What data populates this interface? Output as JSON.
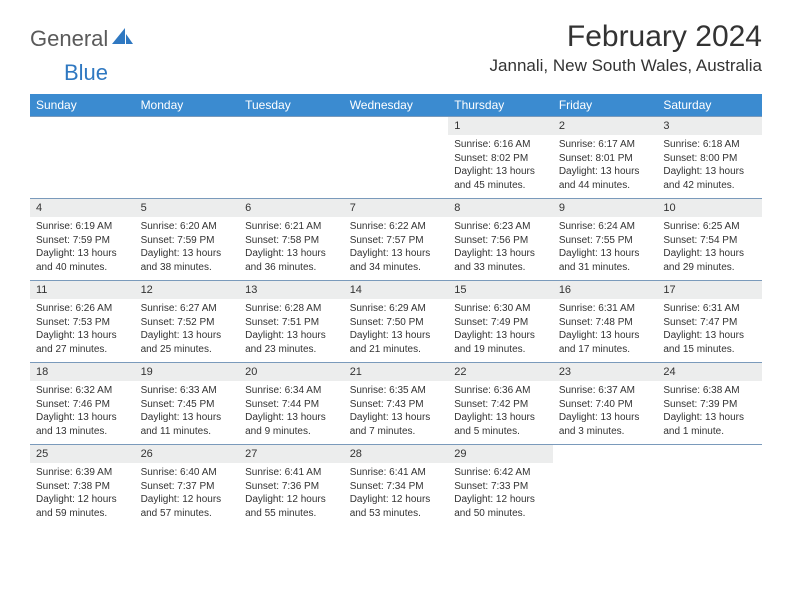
{
  "branding": {
    "text_general": "General",
    "text_blue": "Blue",
    "logo_color": "#2f78c1",
    "text_color_gray": "#5a5a5a"
  },
  "header": {
    "month_title": "February 2024",
    "location": "Jannali, New South Wales, Australia"
  },
  "styling": {
    "header_bg": "#3b8bd0",
    "header_text": "#ffffff",
    "daynum_bg": "#eceded",
    "row_divider": "#7a9abb",
    "body_text": "#333333",
    "page_bg": "#ffffff",
    "title_fontsize": 30,
    "location_fontsize": 17,
    "dayheader_fontsize": 12,
    "daynum_fontsize": 11,
    "cell_fontsize": 10
  },
  "day_headers": [
    "Sunday",
    "Monday",
    "Tuesday",
    "Wednesday",
    "Thursday",
    "Friday",
    "Saturday"
  ],
  "weeks": [
    {
      "nums": [
        "",
        "",
        "",
        "",
        "1",
        "2",
        "3"
      ],
      "cells": [
        null,
        null,
        null,
        null,
        {
          "sunrise": "Sunrise: 6:16 AM",
          "sunset": "Sunset: 8:02 PM",
          "daylight": "Daylight: 13 hours and 45 minutes."
        },
        {
          "sunrise": "Sunrise: 6:17 AM",
          "sunset": "Sunset: 8:01 PM",
          "daylight": "Daylight: 13 hours and 44 minutes."
        },
        {
          "sunrise": "Sunrise: 6:18 AM",
          "sunset": "Sunset: 8:00 PM",
          "daylight": "Daylight: 13 hours and 42 minutes."
        }
      ]
    },
    {
      "nums": [
        "4",
        "5",
        "6",
        "7",
        "8",
        "9",
        "10"
      ],
      "cells": [
        {
          "sunrise": "Sunrise: 6:19 AM",
          "sunset": "Sunset: 7:59 PM",
          "daylight": "Daylight: 13 hours and 40 minutes."
        },
        {
          "sunrise": "Sunrise: 6:20 AM",
          "sunset": "Sunset: 7:59 PM",
          "daylight": "Daylight: 13 hours and 38 minutes."
        },
        {
          "sunrise": "Sunrise: 6:21 AM",
          "sunset": "Sunset: 7:58 PM",
          "daylight": "Daylight: 13 hours and 36 minutes."
        },
        {
          "sunrise": "Sunrise: 6:22 AM",
          "sunset": "Sunset: 7:57 PM",
          "daylight": "Daylight: 13 hours and 34 minutes."
        },
        {
          "sunrise": "Sunrise: 6:23 AM",
          "sunset": "Sunset: 7:56 PM",
          "daylight": "Daylight: 13 hours and 33 minutes."
        },
        {
          "sunrise": "Sunrise: 6:24 AM",
          "sunset": "Sunset: 7:55 PM",
          "daylight": "Daylight: 13 hours and 31 minutes."
        },
        {
          "sunrise": "Sunrise: 6:25 AM",
          "sunset": "Sunset: 7:54 PM",
          "daylight": "Daylight: 13 hours and 29 minutes."
        }
      ]
    },
    {
      "nums": [
        "11",
        "12",
        "13",
        "14",
        "15",
        "16",
        "17"
      ],
      "cells": [
        {
          "sunrise": "Sunrise: 6:26 AM",
          "sunset": "Sunset: 7:53 PM",
          "daylight": "Daylight: 13 hours and 27 minutes."
        },
        {
          "sunrise": "Sunrise: 6:27 AM",
          "sunset": "Sunset: 7:52 PM",
          "daylight": "Daylight: 13 hours and 25 minutes."
        },
        {
          "sunrise": "Sunrise: 6:28 AM",
          "sunset": "Sunset: 7:51 PM",
          "daylight": "Daylight: 13 hours and 23 minutes."
        },
        {
          "sunrise": "Sunrise: 6:29 AM",
          "sunset": "Sunset: 7:50 PM",
          "daylight": "Daylight: 13 hours and 21 minutes."
        },
        {
          "sunrise": "Sunrise: 6:30 AM",
          "sunset": "Sunset: 7:49 PM",
          "daylight": "Daylight: 13 hours and 19 minutes."
        },
        {
          "sunrise": "Sunrise: 6:31 AM",
          "sunset": "Sunset: 7:48 PM",
          "daylight": "Daylight: 13 hours and 17 minutes."
        },
        {
          "sunrise": "Sunrise: 6:31 AM",
          "sunset": "Sunset: 7:47 PM",
          "daylight": "Daylight: 13 hours and 15 minutes."
        }
      ]
    },
    {
      "nums": [
        "18",
        "19",
        "20",
        "21",
        "22",
        "23",
        "24"
      ],
      "cells": [
        {
          "sunrise": "Sunrise: 6:32 AM",
          "sunset": "Sunset: 7:46 PM",
          "daylight": "Daylight: 13 hours and 13 minutes."
        },
        {
          "sunrise": "Sunrise: 6:33 AM",
          "sunset": "Sunset: 7:45 PM",
          "daylight": "Daylight: 13 hours and 11 minutes."
        },
        {
          "sunrise": "Sunrise: 6:34 AM",
          "sunset": "Sunset: 7:44 PM",
          "daylight": "Daylight: 13 hours and 9 minutes."
        },
        {
          "sunrise": "Sunrise: 6:35 AM",
          "sunset": "Sunset: 7:43 PM",
          "daylight": "Daylight: 13 hours and 7 minutes."
        },
        {
          "sunrise": "Sunrise: 6:36 AM",
          "sunset": "Sunset: 7:42 PM",
          "daylight": "Daylight: 13 hours and 5 minutes."
        },
        {
          "sunrise": "Sunrise: 6:37 AM",
          "sunset": "Sunset: 7:40 PM",
          "daylight": "Daylight: 13 hours and 3 minutes."
        },
        {
          "sunrise": "Sunrise: 6:38 AM",
          "sunset": "Sunset: 7:39 PM",
          "daylight": "Daylight: 13 hours and 1 minute."
        }
      ]
    },
    {
      "nums": [
        "25",
        "26",
        "27",
        "28",
        "29",
        "",
        ""
      ],
      "cells": [
        {
          "sunrise": "Sunrise: 6:39 AM",
          "sunset": "Sunset: 7:38 PM",
          "daylight": "Daylight: 12 hours and 59 minutes."
        },
        {
          "sunrise": "Sunrise: 6:40 AM",
          "sunset": "Sunset: 7:37 PM",
          "daylight": "Daylight: 12 hours and 57 minutes."
        },
        {
          "sunrise": "Sunrise: 6:41 AM",
          "sunset": "Sunset: 7:36 PM",
          "daylight": "Daylight: 12 hours and 55 minutes."
        },
        {
          "sunrise": "Sunrise: 6:41 AM",
          "sunset": "Sunset: 7:34 PM",
          "daylight": "Daylight: 12 hours and 53 minutes."
        },
        {
          "sunrise": "Sunrise: 6:42 AM",
          "sunset": "Sunset: 7:33 PM",
          "daylight": "Daylight: 12 hours and 50 minutes."
        },
        null,
        null
      ]
    }
  ]
}
